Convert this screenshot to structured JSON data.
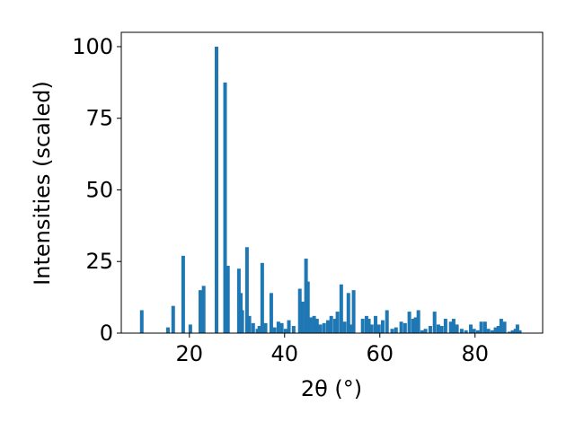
{
  "chart_data": {
    "type": "bar",
    "xlabel": "2θ (°)",
    "ylabel": "Intensities (scaled)",
    "color": "#1f77b4",
    "xlim": [
      5.7,
      94.2
    ],
    "xticks": [
      20,
      40,
      60,
      80
    ],
    "ylim": [
      0,
      105
    ],
    "yticks": [
      0,
      25,
      50,
      75,
      100
    ],
    "x": [
      10.0,
      15.5,
      16.6,
      18.7,
      20.2,
      22.3,
      23.0,
      25.7,
      27.5,
      28.1,
      30.4,
      30.8,
      31.1,
      32.1,
      32.6,
      33.4,
      34.3,
      34.7,
      35.3,
      36.0,
      37.2,
      37.9,
      38.7,
      39.4,
      40.2,
      40.9,
      41.9,
      43.2,
      43.8,
      44.5,
      44.9,
      45.5,
      46.2,
      46.8,
      47.5,
      48.3,
      49.1,
      49.8,
      50.6,
      51.1,
      51.9,
      52.6,
      53.4,
      53.8,
      54.5,
      56.4,
      57.2,
      57.7,
      58.3,
      59.1,
      59.8,
      60.6,
      61.5,
      62.6,
      63.4,
      64.5,
      65.3,
      66.2,
      67.0,
      67.5,
      68.1,
      68.9,
      69.6,
      70.6,
      71.5,
      72.3,
      73.0,
      73.8,
      74.9,
      75.5,
      76.2,
      77.2,
      78.1,
      79.1,
      79.8,
      80.6,
      81.3,
      82.1,
      82.8,
      83.6,
      84.3,
      84.9,
      85.5,
      86.2,
      87.2,
      87.9,
      88.5,
      88.9,
      89.4
    ],
    "values": [
      8,
      2,
      9.5,
      27,
      3,
      15,
      16.5,
      100,
      87.5,
      23.5,
      22.5,
      14,
      8,
      30,
      6,
      3.5,
      1.5,
      2.5,
      24.5,
      3.5,
      14,
      2,
      4,
      3.5,
      1.5,
      4.5,
      2.5,
      15.5,
      11,
      26,
      18,
      5.5,
      6,
      5,
      3,
      3.5,
      4.5,
      6,
      5,
      7.5,
      17,
      4,
      14,
      3,
      15,
      5,
      6,
      5,
      3,
      6,
      3,
      4.5,
      8,
      1.5,
      2,
      4,
      3.5,
      7.5,
      5,
      5.5,
      8,
      1,
      1.5,
      2.5,
      7.5,
      3,
      2.5,
      5,
      4,
      5,
      3,
      1.5,
      1,
      3,
      1.5,
      1,
      4,
      4,
      1.5,
      1,
      2,
      2.5,
      5,
      4,
      0.5,
      1,
      1.5,
      3,
      1
    ]
  }
}
